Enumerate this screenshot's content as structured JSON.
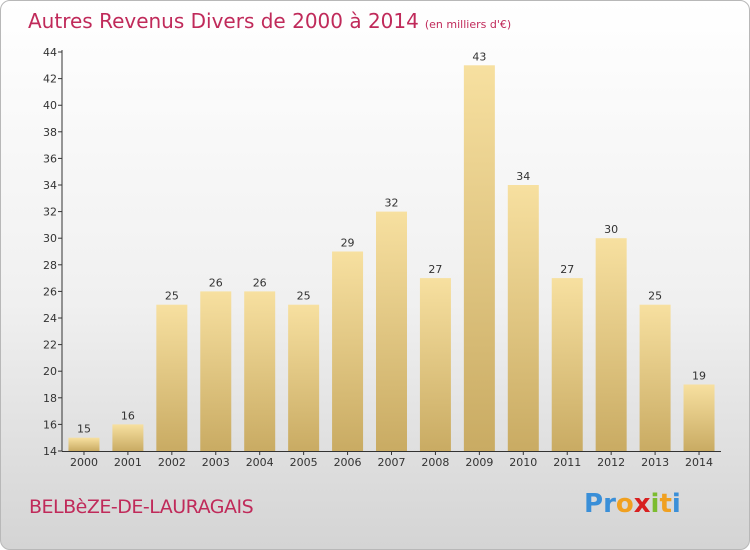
{
  "header": {
    "title": "Autres Revenus Divers de 2000 à 2014",
    "unit": "(en milliers d'€)"
  },
  "footer": {
    "commune": "BELBèZE-DE-LAURAGAIS",
    "logo": {
      "letters": [
        "P",
        "r",
        "o",
        "x",
        "i",
        "t",
        "i"
      ]
    }
  },
  "colors": {
    "title": "#c02a5a",
    "bar_light": "#f7e0a0",
    "bar_dark": "#c9ab63",
    "axis": "#333333",
    "logo": [
      "#3a8fd8",
      "#3a8fd8",
      "#f0a020",
      "#d82020",
      "#7cbc30",
      "#f0a020",
      "#3a8fd8"
    ]
  },
  "chart_data": {
    "type": "bar",
    "title": "Autres Revenus Divers de 2000 à 2014",
    "xlabel": "",
    "ylabel": "",
    "categories": [
      "2000",
      "2001",
      "2002",
      "2003",
      "2004",
      "2005",
      "2006",
      "2007",
      "2008",
      "2009",
      "2010",
      "2011",
      "2012",
      "2013",
      "2014"
    ],
    "values": [
      15,
      16,
      25,
      26,
      26,
      25,
      29,
      32,
      27,
      43,
      34,
      27,
      30,
      25,
      19
    ],
    "ylim": [
      14,
      44
    ],
    "yticks": [
      14,
      16,
      18,
      20,
      22,
      24,
      26,
      28,
      30,
      32,
      34,
      36,
      38,
      40,
      42,
      44
    ],
    "grid": false,
    "legend": "none"
  }
}
